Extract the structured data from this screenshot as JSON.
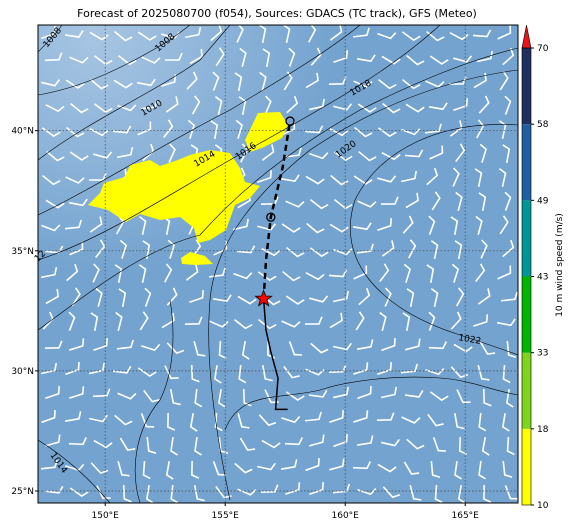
{
  "title": "Forecast of 2025080700 (f054), Sources: GDACS (TC track), GFS (Meteo)",
  "map": {
    "xlim": [
      147.2,
      167.2
    ],
    "ylim": [
      24.5,
      44.4
    ],
    "xticks": [
      {
        "value": 150,
        "label": "150°E"
      },
      {
        "value": 155,
        "label": "155°E"
      },
      {
        "value": 160,
        "label": "160°E"
      },
      {
        "value": 165,
        "label": "165°E"
      }
    ],
    "yticks": [
      {
        "value": 25,
        "label": "25°N"
      },
      {
        "value": 30,
        "label": "30°N"
      },
      {
        "value": 35,
        "label": "35°N"
      },
      {
        "value": 40,
        "label": "40°N"
      }
    ],
    "contour_labels": [
      "1008",
      "1008",
      "1010",
      "1014",
      "1016",
      "1018",
      "1020",
      "1022",
      "1014",
      "12"
    ],
    "track_past": {
      "lon": [
        157.6,
        157.1,
        157.2,
        156.9,
        156.7,
        156.6
      ],
      "lat": [
        28.4,
        28.4,
        29.7,
        30.8,
        31.7,
        33.0
      ]
    },
    "track_forecast": {
      "lon": [
        156.6,
        156.7,
        156.9,
        157.4,
        157.7
      ],
      "lat": [
        33.0,
        34.6,
        36.4,
        38.5,
        40.4
      ]
    },
    "forecast_points": {
      "lon": [
        156.9,
        157.7
      ],
      "lat": [
        36.4,
        40.4
      ]
    },
    "current_position": {
      "lon": 156.6,
      "lat": 33.0
    }
  },
  "colorbar": {
    "label": "10 m wind speed (m/s)",
    "ticks": [
      10,
      18,
      33,
      43,
      49,
      58,
      70
    ],
    "colors": [
      "#ffff00",
      "#7fd41e",
      "#00b400",
      "#009696",
      "#1f5f9f",
      "#1f2f5f"
    ],
    "extend_color": "#e8141c"
  }
}
